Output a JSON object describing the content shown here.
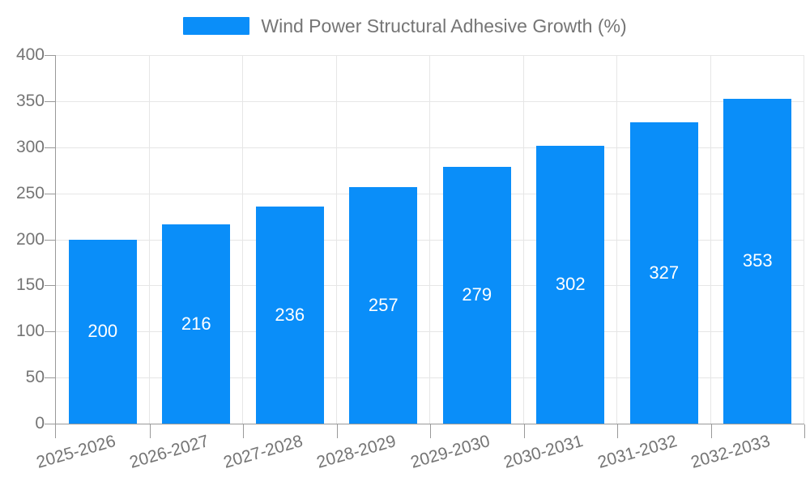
{
  "chart_data": {
    "type": "bar",
    "title": "Wind Power Structural Adhesive Growth (%)",
    "legend_entries": [
      "Wind Power Structural Adhesive Growth (%)"
    ],
    "legend_position": "top-center",
    "categories": [
      "2025-2026",
      "2026-2027",
      "2027-2028",
      "2028-2029",
      "2029-2030",
      "2030-2031",
      "2031-2032",
      "2032-2033"
    ],
    "values": [
      200,
      216,
      236,
      257,
      279,
      302,
      327,
      353
    ],
    "xlabel": "",
    "ylabel": "",
    "ylim": [
      0,
      400
    ],
    "ytick_step": 50,
    "yticks": [
      "0",
      "50",
      "100",
      "150",
      "200",
      "250",
      "300",
      "350",
      "400"
    ],
    "grid": true,
    "x_label_rotation_deg": -16,
    "colors": {
      "bar": "#0a8ef9",
      "axis": "#999999",
      "gridline": "#e6e6e6",
      "tick_text": "#757575",
      "bar_value_text": "#ffffff",
      "background": "#ffffff"
    }
  }
}
